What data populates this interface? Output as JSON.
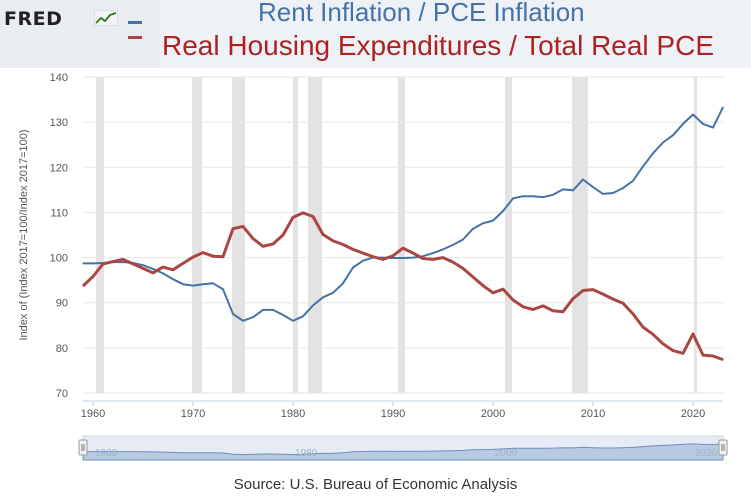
{
  "header": {
    "logo_text": "FRED",
    "series1_title": "Rent Inflation / PCE Inflation",
    "series2_title": "Real Housing Expenditures / Total Real PCE"
  },
  "source_text": "Source: U.S. Bureau of Economic Analysis",
  "navigator": {
    "labels": [
      "1960",
      "1980",
      "2000",
      "2020"
    ]
  },
  "colors": {
    "series1": "#4572a7",
    "series2": "#aa4643",
    "recession": "#e3e3e3",
    "grid": "#e6e6e6"
  },
  "chart_data": {
    "type": "line",
    "ylabel": "Index of (Index 2017=100/Index 2017=100)",
    "xlabel": "",
    "xlim": [
      1959,
      2023
    ],
    "ylim": [
      70,
      140
    ],
    "yticks": [
      70,
      80,
      90,
      100,
      110,
      120,
      130,
      140
    ],
    "xticks": [
      1960,
      1970,
      1980,
      1990,
      2000,
      2010,
      2020
    ],
    "grid": true,
    "recessions": [
      [
        1960.3,
        1961.1
      ],
      [
        1969.9,
        1970.9
      ],
      [
        1973.9,
        1975.2
      ],
      [
        1980.0,
        1980.5
      ],
      [
        1981.5,
        1982.9
      ],
      [
        1990.5,
        1991.2
      ],
      [
        2001.2,
        2001.9
      ],
      [
        2007.9,
        2009.5
      ],
      [
        2020.1,
        2020.3
      ]
    ],
    "x": [
      1959,
      1960,
      1961,
      1962,
      1963,
      1964,
      1965,
      1966,
      1967,
      1968,
      1969,
      1970,
      1971,
      1972,
      1973,
      1974,
      1975,
      1976,
      1977,
      1978,
      1979,
      1980,
      1981,
      1982,
      1983,
      1984,
      1985,
      1986,
      1987,
      1988,
      1989,
      1990,
      1991,
      1992,
      1993,
      1994,
      1995,
      1996,
      1997,
      1998,
      1999,
      2000,
      2001,
      2002,
      2003,
      2004,
      2005,
      2006,
      2007,
      2008,
      2009,
      2010,
      2011,
      2012,
      2013,
      2014,
      2015,
      2016,
      2017,
      2018,
      2019,
      2020,
      2021,
      2022,
      2023
    ],
    "series": [
      {
        "name": "Rent Inflation / PCE Inflation",
        "values": [
          98.7,
          98.7,
          98.8,
          99.0,
          99.0,
          98.8,
          98.3,
          97.5,
          96.5,
          95.2,
          94.1,
          93.8,
          94.1,
          94.3,
          93.0,
          87.5,
          86.0,
          86.8,
          88.4,
          88.4,
          87.3,
          86.0,
          87.0,
          89.4,
          91.2,
          92.2,
          94.3,
          97.8,
          99.3,
          100.0,
          100.0,
          99.9,
          99.9,
          100.0,
          100.3,
          101.0,
          101.8,
          102.8,
          104.0,
          106.4,
          107.6,
          108.2,
          110.3,
          113.1,
          113.6,
          113.6,
          113.4,
          113.9,
          115.1,
          114.9,
          117.3,
          115.6,
          114.1,
          114.3,
          115.4,
          117.0,
          120.2,
          123.1,
          125.5,
          127.1,
          129.6,
          131.7,
          129.6,
          128.8,
          133.3
        ]
      },
      {
        "name": "Real Housing Expenditures / Total Real PCE",
        "values": [
          93.7,
          95.8,
          98.6,
          99.1,
          99.6,
          98.6,
          97.6,
          96.6,
          97.9,
          97.3,
          98.7,
          100.1,
          101.1,
          100.3,
          100.2,
          106.4,
          106.9,
          104.2,
          102.5,
          103.0,
          105.0,
          108.9,
          109.9,
          109.1,
          105.1,
          103.7,
          102.9,
          101.8,
          101.0,
          100.2,
          99.6,
          100.4,
          102.1,
          101.0,
          99.8,
          99.6,
          100.0,
          99.0,
          97.6,
          95.7,
          93.8,
          92.2,
          93.0,
          90.6,
          89.1,
          88.5,
          89.3,
          88.2,
          88.0,
          90.9,
          92.7,
          92.9,
          91.9,
          90.8,
          89.9,
          87.5,
          84.6,
          83.0,
          80.9,
          79.4,
          78.8,
          83.1,
          78.4,
          78.2,
          77.4
        ]
      }
    ]
  }
}
